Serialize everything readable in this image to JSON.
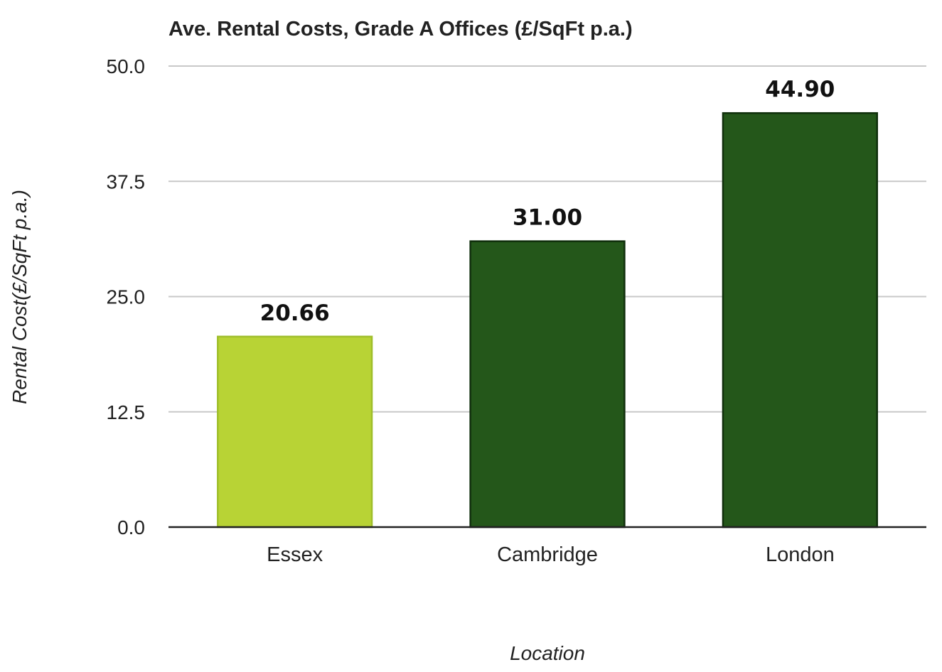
{
  "chart_data": {
    "type": "bar",
    "title": "Ave. Rental Costs, Grade A Offices (£/SqFt p.a.)",
    "xlabel": "Location",
    "ylabel": "Rental Cost(£/SqFt p.a.)",
    "categories": [
      "Essex",
      "Cambridge",
      "London"
    ],
    "values": [
      20.66,
      31.0,
      44.9
    ],
    "data_labels": [
      "20.66",
      "31.00",
      "44.90"
    ],
    "ylim": [
      0,
      50
    ],
    "yticks": [
      0,
      12.5,
      25,
      37.5,
      50
    ],
    "ytick_labels": [
      "0.0",
      "12.5",
      "25.0",
      "37.5",
      "50.0"
    ],
    "grid": true,
    "bar_colors": [
      "#b8d335",
      "#24571a",
      "#24571a"
    ],
    "bar_edge_colors": [
      "#9fbe2a",
      "#0f2e0b",
      "#0f2e0b"
    ]
  }
}
